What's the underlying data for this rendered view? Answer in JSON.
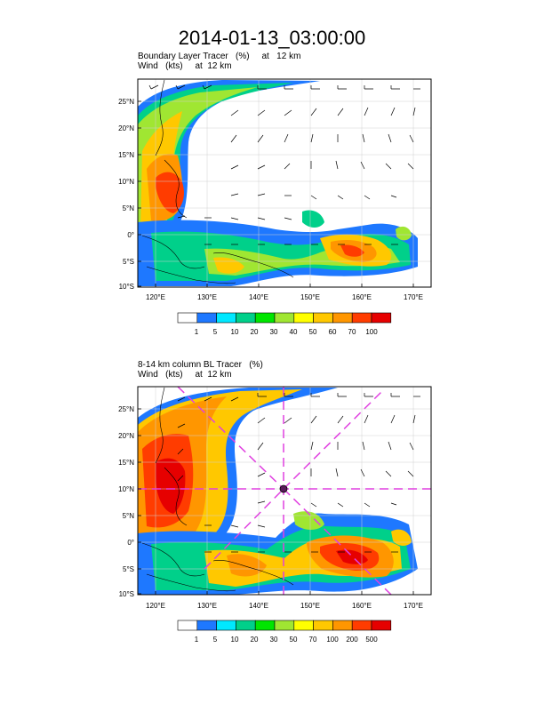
{
  "title": "2014-01-13_03:00:00",
  "panels": [
    {
      "label_line1": "Boundary Layer Tracer   (%)     at   12 km",
      "label_line2": "Wind   (kts)     at  12 km",
      "lat_ticks": [
        "25°N",
        "20°N",
        "15°N",
        "10°N",
        "5°N",
        "0°",
        "5°S",
        "10°S"
      ],
      "lon_ticks": [
        "120°E",
        "130°E",
        "140°E",
        "150°E",
        "160°E",
        "170°E"
      ],
      "colorbar_labels": [
        "1",
        "5",
        "10",
        "20",
        "30",
        "40",
        "50",
        "60",
        "70",
        "100"
      ]
    },
    {
      "label_line1": "8-14 km column BL Tracer   (%)",
      "label_line2": "Wind   (kts)     at  12 km",
      "lat_ticks": [
        "25°N",
        "20°N",
        "15°N",
        "10°N",
        "5°N",
        "0°",
        "5°S",
        "10°S"
      ],
      "lon_ticks": [
        "120°E",
        "130°E",
        "140°E",
        "150°E",
        "160°E",
        "170°E"
      ],
      "colorbar_labels": [
        "1",
        "5",
        "10",
        "20",
        "30",
        "50",
        "70",
        "100",
        "200",
        "500"
      ]
    }
  ],
  "colors": {
    "bins": [
      "#ffffff",
      "#1e78ff",
      "#00e8ff",
      "#00d08a",
      "#00e600",
      "#a0e632",
      "#ffff00",
      "#ffc800",
      "#ff9600",
      "#ff3c00",
      "#e60000"
    ],
    "guide_lines": "#e040e0",
    "coast": "#000000"
  },
  "map_extent": {
    "lon_min": 115,
    "lon_max": 174,
    "lat_min": -10,
    "lat_max": 29
  }
}
